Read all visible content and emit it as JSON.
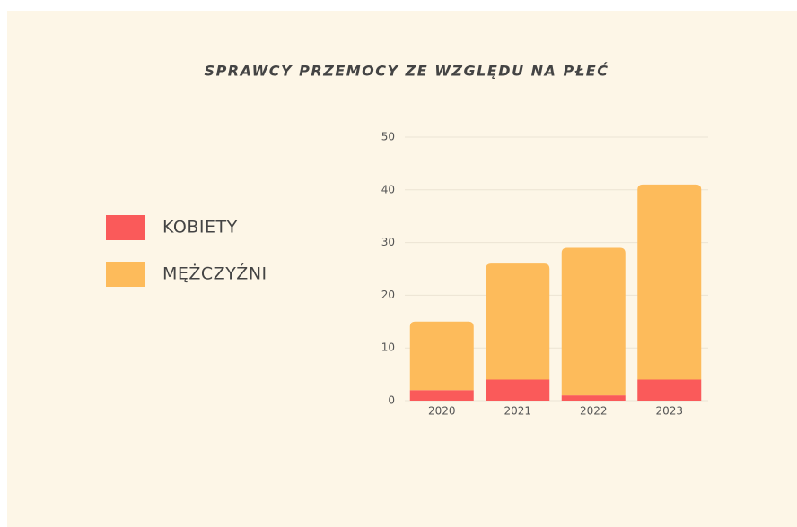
{
  "chart_data": {
    "type": "stacked_bar",
    "title": "SPRAWCY PRZEMOCY ZE WZGLĘDU NA PŁEĆ",
    "categories": [
      "2020",
      "2021",
      "2022",
      "2023"
    ],
    "series": [
      {
        "name": "KOBIETY",
        "color": "#fa5a5a",
        "values": [
          2,
          4,
          1,
          4
        ]
      },
      {
        "name": "MĘŻCZYŹNI",
        "color": "#fdbb5b",
        "values": [
          13,
          22,
          28,
          37
        ]
      }
    ],
    "ylim": [
      0,
      50
    ],
    "yticks": [
      0,
      10,
      20,
      30,
      40,
      50
    ],
    "grid": true
  }
}
